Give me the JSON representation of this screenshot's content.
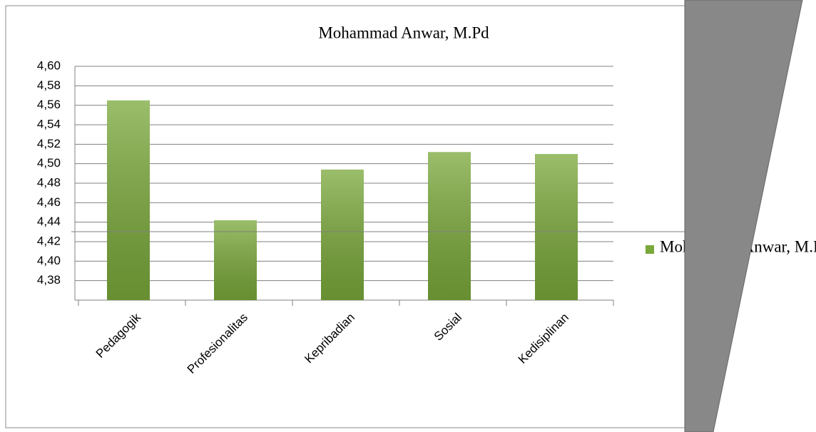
{
  "chart_data": {
    "type": "bar",
    "title": "Mohammad Anwar, M.Pd",
    "categories": [
      "Pedagogik",
      "Profesionalitas",
      "Kepribadian",
      "Sosial",
      "Kedisiplinan"
    ],
    "series": [
      {
        "name": "Mohammad Anwar, M.Pd",
        "color": "#7aa83a",
        "values": [
          4.565,
          4.442,
          4.494,
          4.512,
          4.51
        ]
      }
    ],
    "ylim": [
      4.36,
      4.6
    ],
    "yticks": [
      {
        "value": 4.38,
        "label": "4,38"
      },
      {
        "value": 4.4,
        "label": "4,40"
      },
      {
        "value": 4.42,
        "label": "4,42"
      },
      {
        "value": 4.44,
        "label": "4,44"
      },
      {
        "value": 4.46,
        "label": "4,46"
      },
      {
        "value": 4.48,
        "label": "4,48"
      },
      {
        "value": 4.5,
        "label": "4,50"
      },
      {
        "value": 4.52,
        "label": "4,52"
      },
      {
        "value": 4.54,
        "label": "4,54"
      },
      {
        "value": 4.56,
        "label": "4,56"
      },
      {
        "value": 4.58,
        "label": "4,58"
      },
      {
        "value": 4.6,
        "label": "4,60"
      }
    ],
    "grid": true,
    "legend": "right"
  }
}
